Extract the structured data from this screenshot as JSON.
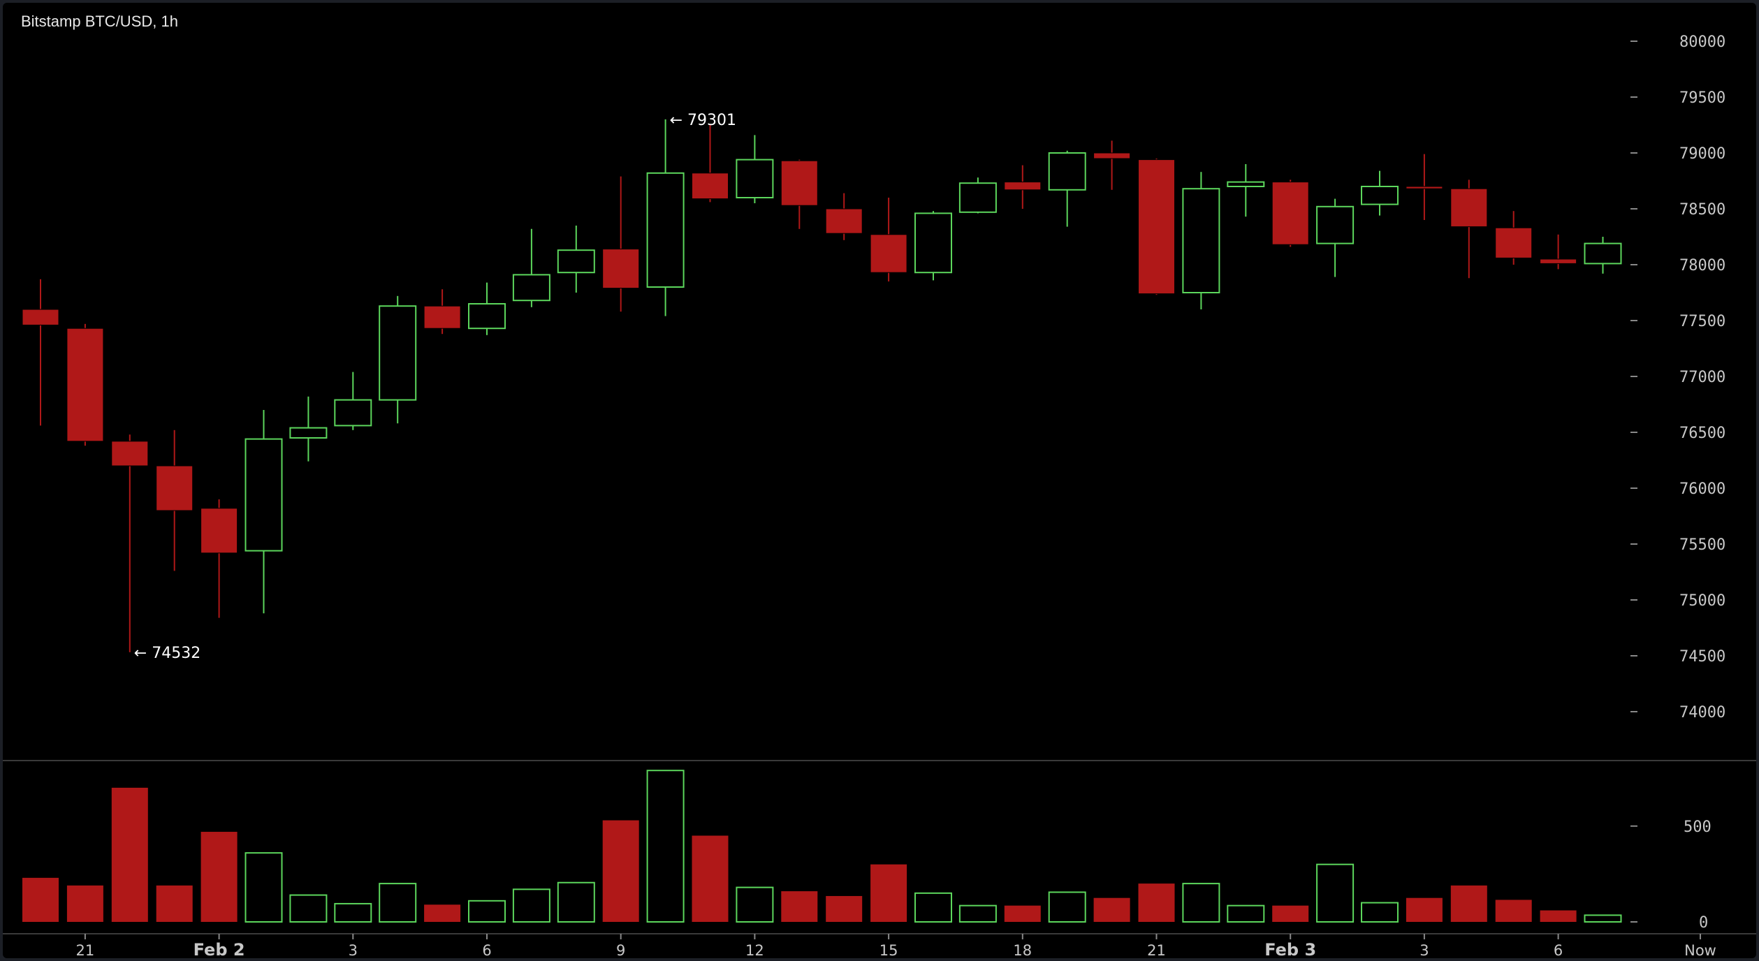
{
  "header": {
    "title": "Bitstamp BTC/USD, 1h"
  },
  "colors": {
    "up": "#5cd65c",
    "down": "#b01818",
    "background": "#000000",
    "text": "#c8c8c8"
  },
  "chart_data": {
    "type": "candlestick",
    "title": "Bitstamp BTC/USD, 1h",
    "price_ylim": [
      73500,
      80300
    ],
    "price_ticks": [
      74000,
      74500,
      75000,
      75500,
      76000,
      76500,
      77000,
      77500,
      78000,
      78500,
      79000,
      79500,
      80000
    ],
    "volume_ylim": [
      0,
      860
    ],
    "volume_ticks": [
      0,
      500
    ],
    "x_labels": [
      {
        "label": "21",
        "index": 1,
        "major": false
      },
      {
        "label": "Feb 2",
        "index": 4,
        "major": true
      },
      {
        "label": "3",
        "index": 7,
        "major": false
      },
      {
        "label": "6",
        "index": 10,
        "major": false
      },
      {
        "label": "9",
        "index": 13,
        "major": false
      },
      {
        "label": "12",
        "index": 16,
        "major": false
      },
      {
        "label": "15",
        "index": 19,
        "major": false
      },
      {
        "label": "18",
        "index": 22,
        "major": false
      },
      {
        "label": "21",
        "index": 25,
        "major": false
      },
      {
        "label": "Feb 3",
        "index": 28,
        "major": true
      },
      {
        "label": "3",
        "index": 31,
        "major": false
      },
      {
        "label": "6",
        "index": 34,
        "major": false
      },
      {
        "label": "Now",
        "index": 37,
        "major": false
      }
    ],
    "annotations": [
      {
        "text": "← 74532",
        "index": 2,
        "value": 74532
      },
      {
        "text": "← 79301",
        "index": 14,
        "value": 79301
      }
    ],
    "candles": [
      {
        "o": 77600,
        "h": 77870,
        "l": 76560,
        "c": 77460,
        "v": 230
      },
      {
        "o": 77430,
        "h": 77470,
        "l": 76380,
        "c": 76420,
        "v": 190
      },
      {
        "o": 76420,
        "h": 76480,
        "l": 74532,
        "c": 76200,
        "v": 700
      },
      {
        "o": 76200,
        "h": 76520,
        "l": 75260,
        "c": 75800,
        "v": 190
      },
      {
        "o": 75820,
        "h": 75900,
        "l": 74840,
        "c": 75420,
        "v": 470
      },
      {
        "o": 75440,
        "h": 76700,
        "l": 74880,
        "c": 76440,
        "v": 360
      },
      {
        "o": 76450,
        "h": 76820,
        "l": 76240,
        "c": 76540,
        "v": 140
      },
      {
        "o": 76560,
        "h": 77040,
        "l": 76520,
        "c": 76790,
        "v": 95
      },
      {
        "o": 76790,
        "h": 77720,
        "l": 76580,
        "c": 77630,
        "v": 200
      },
      {
        "o": 77630,
        "h": 77780,
        "l": 77380,
        "c": 77430,
        "v": 90
      },
      {
        "o": 77430,
        "h": 77840,
        "l": 77370,
        "c": 77650,
        "v": 110
      },
      {
        "o": 77680,
        "h": 78320,
        "l": 77620,
        "c": 77910,
        "v": 170
      },
      {
        "o": 77930,
        "h": 78350,
        "l": 77750,
        "c": 78130,
        "v": 205
      },
      {
        "o": 78140,
        "h": 78790,
        "l": 77580,
        "c": 77790,
        "v": 530
      },
      {
        "o": 77800,
        "h": 79301,
        "l": 77540,
        "c": 78820,
        "v": 790
      },
      {
        "o": 78820,
        "h": 79250,
        "l": 78560,
        "c": 78590,
        "v": 450
      },
      {
        "o": 78600,
        "h": 79160,
        "l": 78550,
        "c": 78940,
        "v": 180
      },
      {
        "o": 78930,
        "h": 78940,
        "l": 78320,
        "c": 78530,
        "v": 160
      },
      {
        "o": 78500,
        "h": 78640,
        "l": 78220,
        "c": 78280,
        "v": 135
      },
      {
        "o": 78270,
        "h": 78600,
        "l": 77850,
        "c": 77930,
        "v": 300
      },
      {
        "o": 77930,
        "h": 78480,
        "l": 77860,
        "c": 78460,
        "v": 150
      },
      {
        "o": 78470,
        "h": 78780,
        "l": 78460,
        "c": 78730,
        "v": 85
      },
      {
        "o": 78740,
        "h": 78890,
        "l": 78500,
        "c": 78670,
        "v": 85
      },
      {
        "o": 78670,
        "h": 79020,
        "l": 78340,
        "c": 79000,
        "v": 155
      },
      {
        "o": 79000,
        "h": 79110,
        "l": 78670,
        "c": 78950,
        "v": 125
      },
      {
        "o": 78940,
        "h": 78950,
        "l": 77730,
        "c": 77740,
        "v": 200
      },
      {
        "o": 77750,
        "h": 78830,
        "l": 77600,
        "c": 78680,
        "v": 200
      },
      {
        "o": 78700,
        "h": 78900,
        "l": 78430,
        "c": 78740,
        "v": 85
      },
      {
        "o": 78740,
        "h": 78760,
        "l": 78160,
        "c": 78180,
        "v": 85
      },
      {
        "o": 78190,
        "h": 78590,
        "l": 77890,
        "c": 78520,
        "v": 300
      },
      {
        "o": 78540,
        "h": 78840,
        "l": 78440,
        "c": 78700,
        "v": 100
      },
      {
        "o": 78700,
        "h": 78990,
        "l": 78400,
        "c": 78680,
        "v": 125
      },
      {
        "o": 78680,
        "h": 78760,
        "l": 77880,
        "c": 78340,
        "v": 190
      },
      {
        "o": 78330,
        "h": 78480,
        "l": 78000,
        "c": 78060,
        "v": 115
      },
      {
        "o": 78050,
        "h": 78270,
        "l": 77960,
        "c": 78010,
        "v": 60
      },
      {
        "o": 78010,
        "h": 78250,
        "l": 77920,
        "c": 78190,
        "v": 35
      }
    ]
  }
}
